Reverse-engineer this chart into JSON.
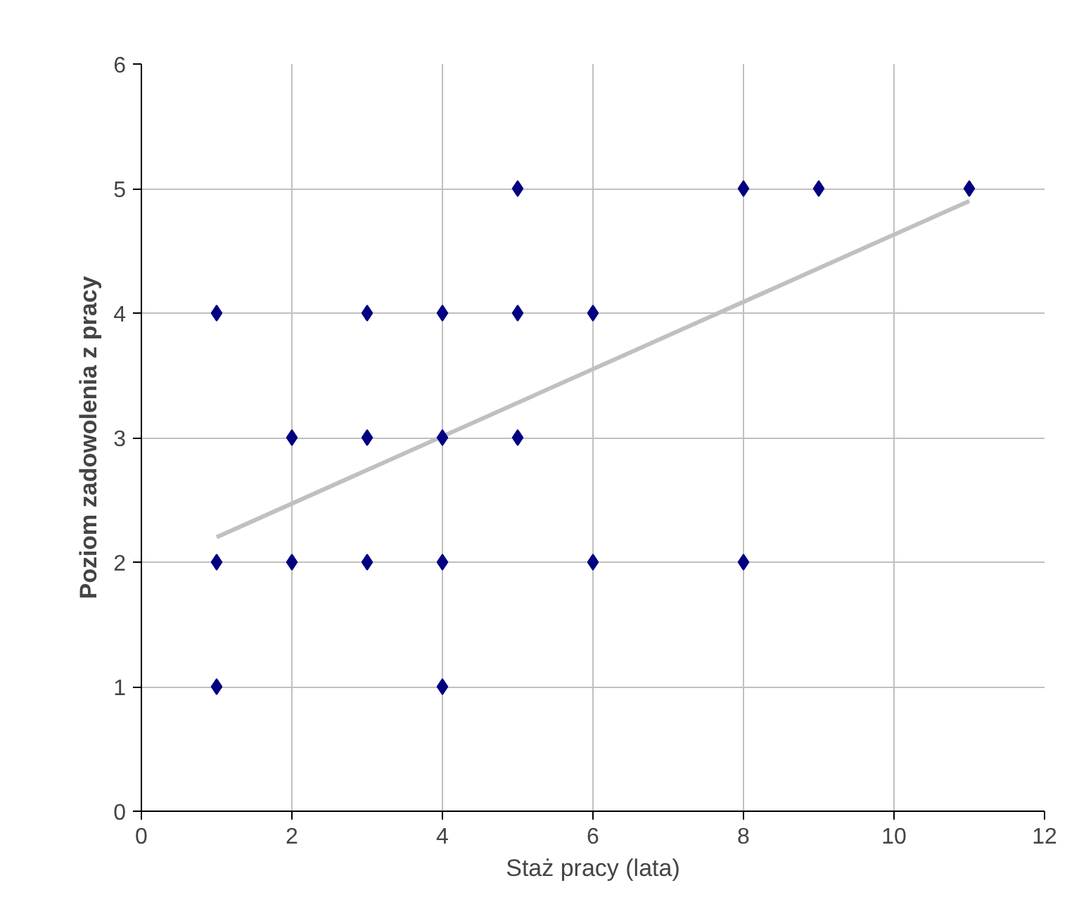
{
  "chart_data": {
    "type": "scatter",
    "xlabel": "Staż pracy (lata)",
    "ylabel": "Poziom zadowolenia z pracy",
    "xlim": [
      0,
      12
    ],
    "ylim": [
      0,
      6
    ],
    "xticks": [
      0,
      2,
      4,
      6,
      8,
      10,
      12
    ],
    "yticks": [
      0,
      1,
      2,
      3,
      4,
      5,
      6
    ],
    "grid": true,
    "series": [
      {
        "color": "#000080",
        "marker": "diamond",
        "x": [
          1,
          1,
          1,
          2,
          2,
          3,
          3,
          3,
          4,
          4,
          4,
          4,
          5,
          5,
          5,
          6,
          6,
          8,
          8,
          9,
          11
        ],
        "values": [
          4,
          2,
          1,
          3,
          2,
          4,
          3,
          2,
          4,
          3,
          2,
          1,
          5,
          4,
          3,
          4,
          2,
          5,
          2,
          5,
          5
        ]
      },
      {
        "type": "line",
        "color": "#c0c0c0",
        "x": [
          1,
          11
        ],
        "values": [
          2.2,
          4.9
        ]
      }
    ]
  }
}
